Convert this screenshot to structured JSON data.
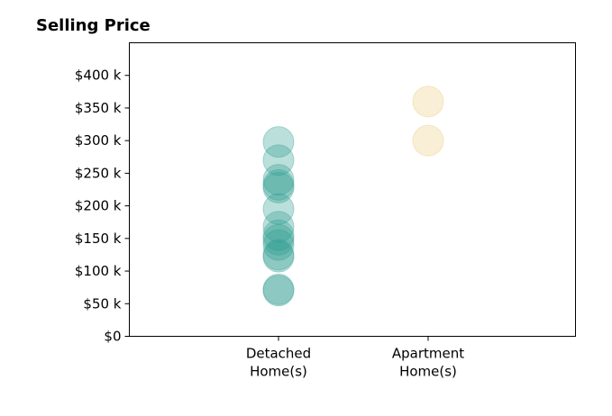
{
  "chart_data": {
    "type": "scatter",
    "title": "Selling Price",
    "xlabel": "",
    "ylabel": "",
    "categories": [
      [
        "Detached",
        "Home(s)"
      ],
      [
        "Apartment",
        "Home(s)"
      ]
    ],
    "ylim": [
      0,
      450000
    ],
    "yticks": [
      0,
      50000,
      100000,
      150000,
      200000,
      250000,
      300000,
      350000,
      400000
    ],
    "ytick_labels": [
      "$0",
      "$50 k",
      "$100 k",
      "$150 k",
      "$200 k",
      "$250 k",
      "$300 k",
      "$350 k",
      "$400 k"
    ],
    "grid": false,
    "series": [
      {
        "category_index": 0,
        "color": "#2a9d8f",
        "values": [
          298000,
          270000,
          240000,
          232000,
          228000,
          195000,
          168000,
          155000,
          148000,
          140000,
          125000,
          122000,
          72000,
          70000
        ]
      },
      {
        "category_index": 1,
        "color": "#e9c46a",
        "values": [
          360000,
          300000
        ]
      }
    ]
  }
}
